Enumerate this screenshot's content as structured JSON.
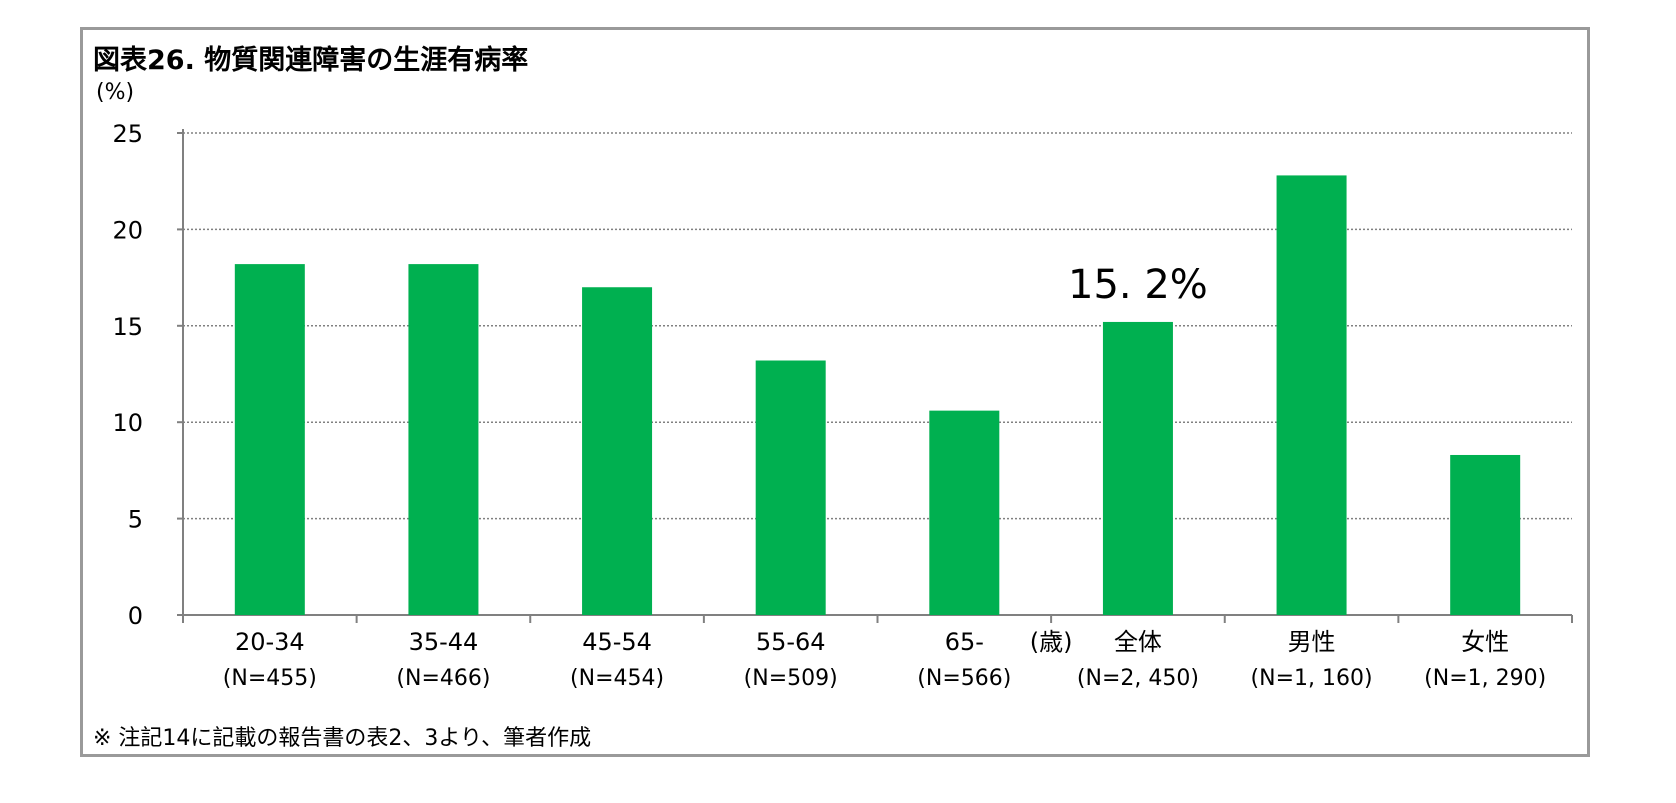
{
  "title": "図表26. 物質関連障害の生涯有病率",
  "unit_label": "(%)",
  "note": "※ 注記14に記載の報告書の表2、3より、筆者作成",
  "colors": {
    "bar": "#00b050",
    "grid": "#808080",
    "axis": "#808080"
  },
  "chart_data": {
    "type": "bar",
    "title": "図表26. 物質関連障害の生涯有病率",
    "ylabel": "(%)",
    "xlabel": "",
    "ylim": [
      0,
      25
    ],
    "yticks": [
      "0",
      "5",
      "10",
      "15",
      "20",
      "25"
    ],
    "grid": true,
    "categories": [
      {
        "name": "20-34",
        "n": "(N=455)"
      },
      {
        "name": "35-44",
        "n": "(N=466)"
      },
      {
        "name": "45-54",
        "n": "(N=454)"
      },
      {
        "name": "55-64",
        "n": "(N=509)"
      },
      {
        "name": "65-",
        "n": "(N=566)"
      },
      {
        "name": "全体",
        "n": "(N=2, 450)"
      },
      {
        "name": "男性",
        "n": "(N=1, 160)"
      },
      {
        "name": "女性",
        "n": "(N=1, 290)"
      }
    ],
    "values": [
      18.2,
      18.2,
      17.0,
      13.2,
      10.6,
      15.2,
      22.8,
      8.3
    ],
    "age_group_label": "(歳)",
    "annotation": {
      "text": "15. 2%",
      "category_index": 5
    }
  }
}
